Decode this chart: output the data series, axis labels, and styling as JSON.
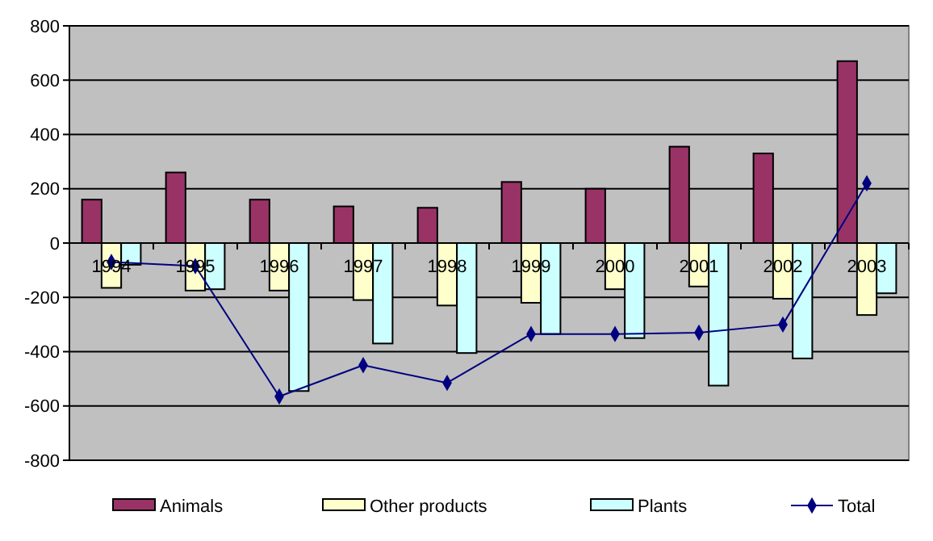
{
  "chart_data": {
    "type": "bar",
    "categories": [
      "1994",
      "1995",
      "1996",
      "1997",
      "1998",
      "1999",
      "2000",
      "2001",
      "2002",
      "2003"
    ],
    "series": [
      {
        "name": "Animals",
        "color": "#993366",
        "values": [
          160,
          260,
          160,
          135,
          130,
          225,
          200,
          355,
          330,
          670
        ]
      },
      {
        "name": "Other products",
        "color": "#ffffcc",
        "values": [
          -165,
          -175,
          -175,
          -210,
          -230,
          -220,
          -170,
          -160,
          -205,
          -265
        ]
      },
      {
        "name": "Plants",
        "color": "#ccffff",
        "values": [
          -80,
          -170,
          -545,
          -370,
          -405,
          -335,
          -350,
          -525,
          -425,
          -185
        ]
      },
      {
        "name": "Total",
        "type": "line",
        "color": "#000080",
        "marker": "diamond",
        "values": [
          -70,
          -85,
          -565,
          -450,
          -515,
          -335,
          -335,
          -330,
          -300,
          220
        ]
      }
    ],
    "ylim": [
      -800,
      800
    ],
    "yticks": [
      -800,
      -600,
      -400,
      -200,
      0,
      200,
      400,
      600,
      800
    ],
    "grid": "y",
    "legend": "bottom"
  }
}
